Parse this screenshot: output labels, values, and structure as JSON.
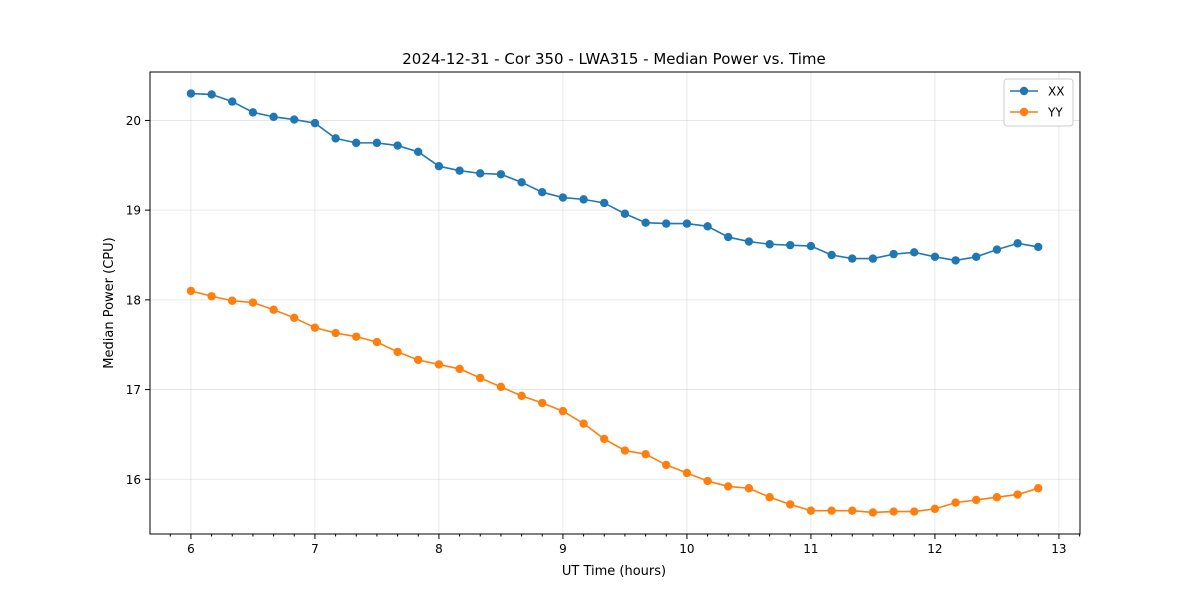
{
  "chart_data": {
    "type": "line",
    "title": "2024-12-31 - Cor 350 - LWA315 - Median Power vs. Time",
    "xlabel": "UT Time (hours)",
    "ylabel": "Median Power (CPU)",
    "xlim": [
      5.67,
      13.17
    ],
    "ylim": [
      15.39,
      20.54
    ],
    "x_ticks": [
      6,
      7,
      8,
      9,
      10,
      11,
      12,
      13
    ],
    "x_tick_labels": [
      "6",
      "7",
      "8",
      "9",
      "10",
      "11",
      "12",
      "13"
    ],
    "y_ticks": [
      16,
      17,
      18,
      19,
      20
    ],
    "y_tick_labels": [
      "16",
      "17",
      "18",
      "19",
      "20"
    ],
    "grid": true,
    "legend_position": "top-right",
    "x": [
      6.0,
      6.167,
      6.333,
      6.5,
      6.667,
      6.833,
      7.0,
      7.167,
      7.333,
      7.5,
      7.667,
      7.833,
      8.0,
      8.167,
      8.333,
      8.5,
      8.667,
      8.833,
      9.0,
      9.167,
      9.333,
      9.5,
      9.667,
      9.833,
      10.0,
      10.167,
      10.333,
      10.5,
      10.667,
      10.833,
      11.0,
      11.167,
      11.333,
      11.5,
      11.667,
      11.833,
      12.0,
      12.167,
      12.333,
      12.5,
      12.667,
      12.833
    ],
    "series": [
      {
        "name": "XX",
        "color": "#1f77b4",
        "values": [
          20.3,
          20.29,
          20.21,
          20.09,
          20.04,
          20.01,
          19.97,
          19.8,
          19.75,
          19.75,
          19.72,
          19.65,
          19.49,
          19.44,
          19.41,
          19.4,
          19.31,
          19.2,
          19.14,
          19.12,
          19.08,
          18.96,
          18.86,
          18.85,
          18.85,
          18.82,
          18.7,
          18.65,
          18.62,
          18.61,
          18.6,
          18.5,
          18.46,
          18.46,
          18.51,
          18.53,
          18.48,
          18.44,
          18.48,
          18.56,
          18.63,
          18.59
        ]
      },
      {
        "name": "YY",
        "color": "#ff7f0e",
        "values": [
          18.1,
          18.04,
          17.99,
          17.97,
          17.89,
          17.8,
          17.69,
          17.63,
          17.59,
          17.53,
          17.42,
          17.33,
          17.28,
          17.23,
          17.13,
          17.03,
          16.93,
          16.85,
          16.76,
          16.62,
          16.45,
          16.32,
          16.28,
          16.16,
          16.07,
          15.98,
          15.92,
          15.9,
          15.8,
          15.72,
          15.65,
          15.65,
          15.65,
          15.63,
          15.64,
          15.64,
          15.67,
          15.74,
          15.77,
          15.8,
          15.83,
          15.9
        ]
      }
    ]
  }
}
